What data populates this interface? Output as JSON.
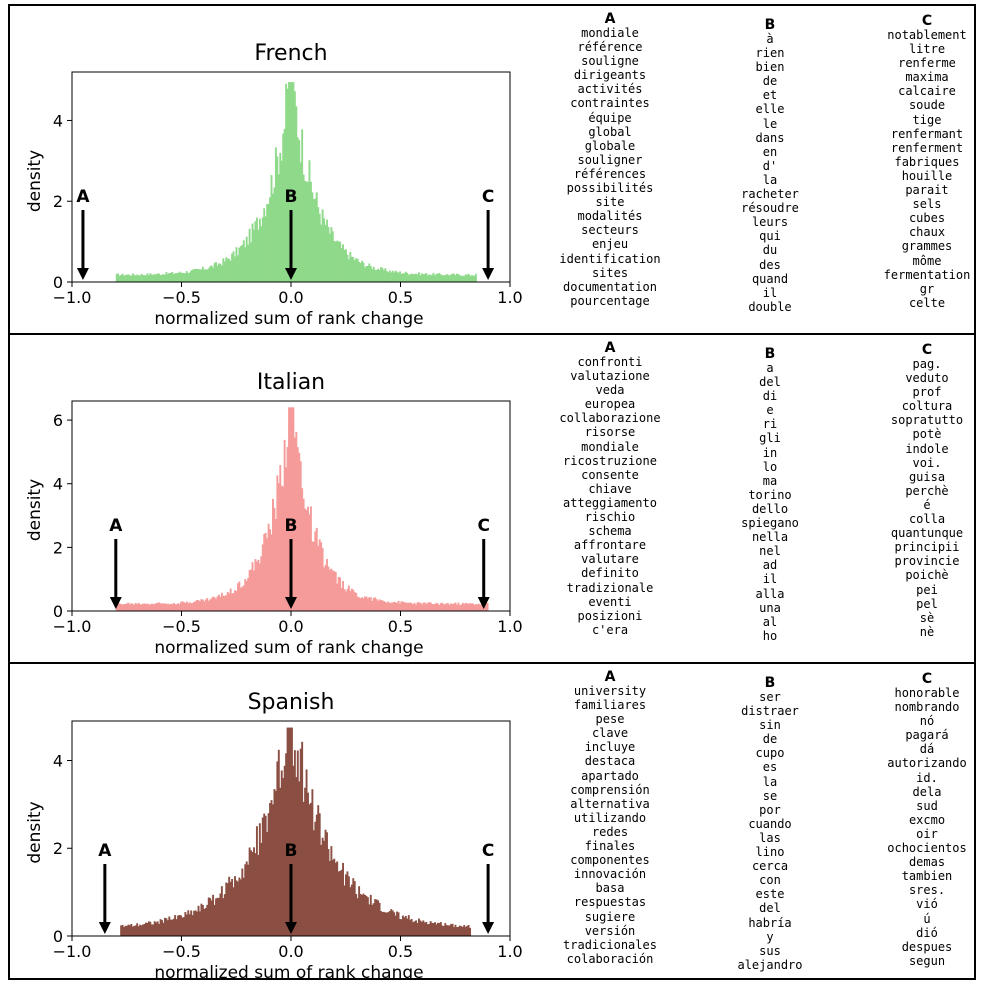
{
  "chart_data": [
    {
      "type": "bar",
      "title": "French",
      "xlabel": "normalized sum of rank change",
      "ylabel": "density",
      "xlim": [
        -1.0,
        1.0
      ],
      "ylim": [
        0,
        5.2
      ],
      "xticks": [
        "−1.0",
        "−0.5",
        "0.0",
        "0.5",
        "1.0"
      ],
      "yticks": [
        "0",
        "2",
        "4"
      ],
      "ytick_values": [
        0,
        2,
        4
      ],
      "color": "#8fd98a",
      "peak": 4.95,
      "spread": 0.115,
      "support": [
        -0.8,
        0.85
      ],
      "markers": [
        {
          "label": "A",
          "x": -0.95
        },
        {
          "label": "B",
          "x": 0.0
        },
        {
          "label": "C",
          "x": 0.9
        }
      ],
      "words": {
        "A": [
          "mondiale",
          "référence",
          "souligne",
          "dirigeants",
          "activités",
          "contraintes",
          "équipe",
          "global",
          "globale",
          "souligner",
          "références",
          "possibilités",
          "site",
          "modalités",
          "secteurs",
          "enjeu",
          "identification",
          "sites",
          "documentation",
          "pourcentage"
        ],
        "B": [
          "à",
          "rien",
          "bien",
          "de",
          "et",
          "elle",
          "le",
          "dans",
          "en",
          "d'",
          "la",
          "racheter",
          "résoudre",
          "leurs",
          "qui",
          "du",
          "des",
          "quand",
          "il",
          "double"
        ],
        "C": [
          "notablement",
          "litre",
          "renferme",
          "maxima",
          "calcaire",
          "soude",
          "tige",
          "renfermant",
          "renferment",
          "fabriques",
          "houille",
          "parait",
          "sels",
          "cubes",
          "chaux",
          "grammes",
          "môme",
          "fermentation",
          "gr",
          "celte"
        ]
      }
    },
    {
      "type": "bar",
      "title": "Italian",
      "xlabel": "normalized sum of rank change",
      "ylabel": "density",
      "xlim": [
        -1.0,
        1.0
      ],
      "ylim": [
        0,
        6.6
      ],
      "xticks": [
        "−1.0",
        "−0.5",
        "0.0",
        "0.5",
        "1.0"
      ],
      "yticks": [
        "0",
        "2",
        "4",
        "6"
      ],
      "ytick_values": [
        0,
        2,
        4,
        6
      ],
      "color": "#f59b99",
      "peak": 6.4,
      "spread": 0.1,
      "support": [
        -0.8,
        0.9
      ],
      "markers": [
        {
          "label": "A",
          "x": -0.8
        },
        {
          "label": "B",
          "x": 0.0
        },
        {
          "label": "C",
          "x": 0.88
        }
      ],
      "words": {
        "A": [
          "confronti",
          "valutazione",
          "veda",
          "europea",
          "collaborazione",
          "risorse",
          "mondiale",
          "ricostruzione",
          "consente",
          "chiave",
          "atteggiamento",
          "rischio",
          "schema",
          "affrontare",
          "valutare",
          "definito",
          "tradizionale",
          "eventi",
          "posizioni",
          "c'era"
        ],
        "B": [
          "a",
          "del",
          "di",
          "e",
          "ri",
          "gli",
          "in",
          "lo",
          "ma",
          "torino",
          "dello",
          "spiegano",
          "nella",
          "nel",
          "ad",
          "il",
          "alla",
          "una",
          "al",
          "ho"
        ],
        "C": [
          "pag.",
          "veduto",
          "prof",
          "coltura",
          "sopratutto",
          "potè",
          "indole",
          "voi.",
          "guisa",
          "perchè",
          "é",
          "colla",
          "quantunque",
          "principii",
          "provincie",
          "poichè",
          "pei",
          "pel",
          "sè",
          "nè"
        ]
      }
    },
    {
      "type": "bar",
      "title": "Spanish",
      "xlabel": "normalized sum of rank change",
      "ylabel": "density",
      "xlim": [
        -1.0,
        1.0
      ],
      "ylim": [
        0,
        4.9
      ],
      "xticks": [
        "−1.0",
        "−0.5",
        "0.0",
        "0.5",
        "1.0"
      ],
      "yticks": [
        "0",
        "2",
        "4"
      ],
      "ytick_values": [
        0,
        2,
        4
      ],
      "color": "#8a4e42",
      "peak": 4.75,
      "spread": 0.18,
      "support": [
        -0.78,
        0.82
      ],
      "markers": [
        {
          "label": "A",
          "x": -0.85
        },
        {
          "label": "B",
          "x": 0.0
        },
        {
          "label": "C",
          "x": 0.9
        }
      ],
      "words": {
        "A": [
          "university",
          "familiares",
          "pese",
          "clave",
          "incluye",
          "destaca",
          "apartado",
          "comprensión",
          "alternativa",
          "utilizando",
          "redes",
          "finales",
          "componentes",
          "innovación",
          "basa",
          "respuestas",
          "sugiere",
          "versión",
          "tradicionales",
          "colaboración"
        ],
        "B": [
          "ser",
          "distraer",
          "sin",
          "de",
          "cupo",
          "es",
          "la",
          "se",
          "por",
          "cuando",
          "las",
          "lino",
          "cerca",
          "con",
          "este",
          "del",
          "habría",
          "y",
          "sus",
          "alejandro"
        ],
        "C": [
          "honorable",
          "nombrando",
          "nó",
          "pagará",
          "dá",
          "autorizando",
          "id.",
          "dela",
          "sud",
          "excmo",
          "oir",
          "ochocientos",
          "demas",
          "tambien",
          "sres.",
          "vió",
          "ú",
          "dió",
          "despues",
          "segun"
        ]
      }
    }
  ]
}
